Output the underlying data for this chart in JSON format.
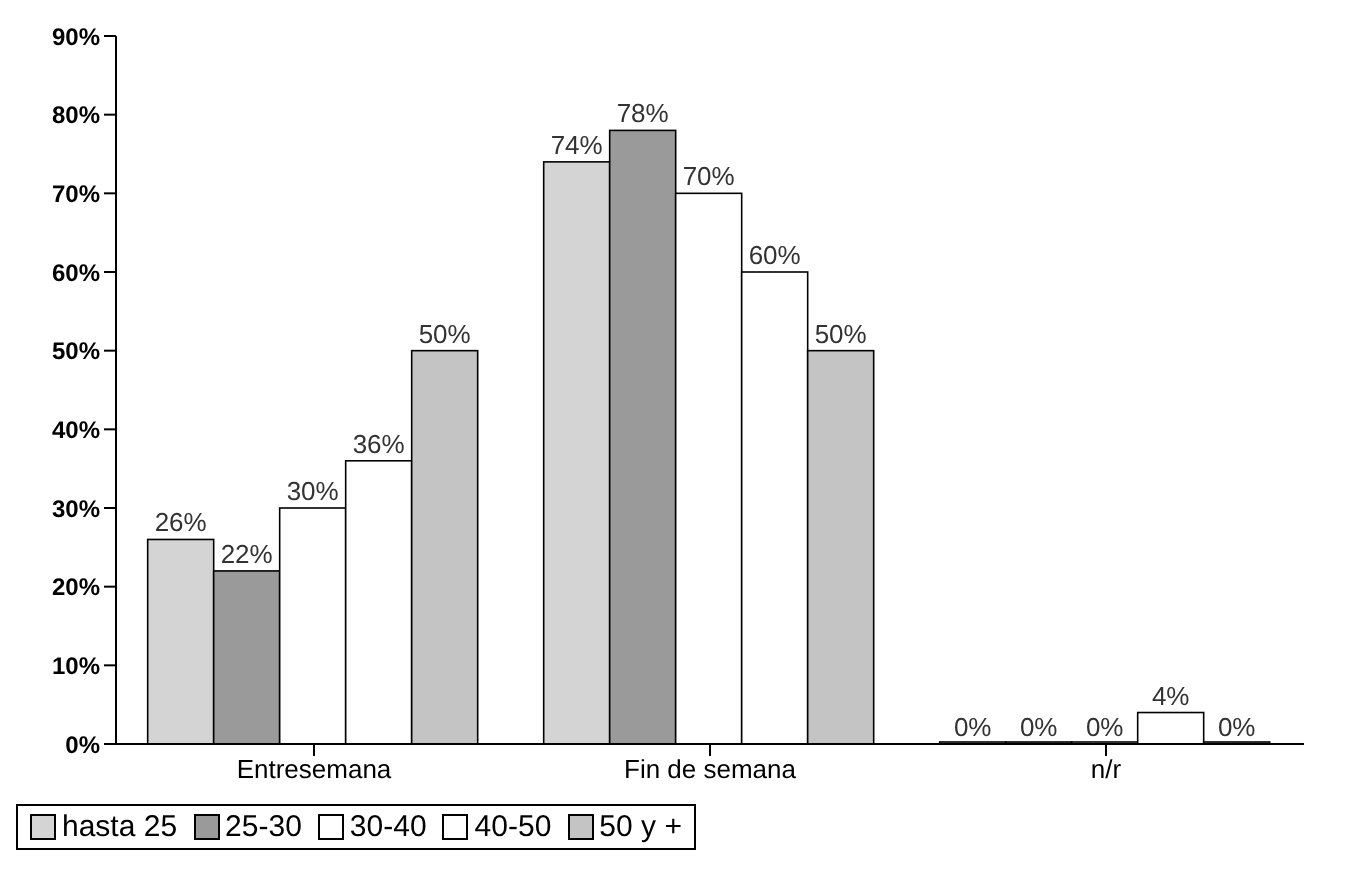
{
  "chart_data": {
    "type": "bar",
    "categories": [
      "Entresemana",
      "Fin de semana",
      "n/r"
    ],
    "series": [
      {
        "name": "hasta 25",
        "color": "#d4d4d4",
        "values": [
          26,
          74,
          0
        ],
        "value_labels": [
          "26%",
          "74%",
          "0%"
        ]
      },
      {
        "name": "25-30",
        "color": "#9a9a9a",
        "values": [
          22,
          78,
          0
        ],
        "value_labels": [
          "22%",
          "78%",
          "0%"
        ]
      },
      {
        "name": "30-40",
        "color": "#ffffff",
        "values": [
          30,
          70,
          0
        ],
        "value_labels": [
          "30%",
          "70%",
          "0%"
        ]
      },
      {
        "name": "40-50",
        "color": "#ffffff",
        "values": [
          36,
          60,
          4
        ],
        "value_labels": [
          "36%",
          "60%",
          "4%"
        ]
      },
      {
        "name": "50 y +",
        "color": "#c4c4c4",
        "values": [
          50,
          50,
          0
        ],
        "value_labels": [
          "50%",
          "50%",
          "0%"
        ]
      }
    ],
    "ylim": [
      0,
      90
    ],
    "yticks": [
      {
        "value": 0,
        "label": "0%"
      },
      {
        "value": 10,
        "label": "10%"
      },
      {
        "value": 20,
        "label": "20%"
      },
      {
        "value": 30,
        "label": "30%"
      },
      {
        "value": 40,
        "label": "40%"
      },
      {
        "value": 50,
        "label": "50%"
      },
      {
        "value": 60,
        "label": "60%"
      },
      {
        "value": 70,
        "label": "70%"
      },
      {
        "value": 80,
        "label": "80%"
      },
      {
        "value": 90,
        "label": "90%"
      }
    ],
    "grid": false,
    "legend": "bottom"
  }
}
